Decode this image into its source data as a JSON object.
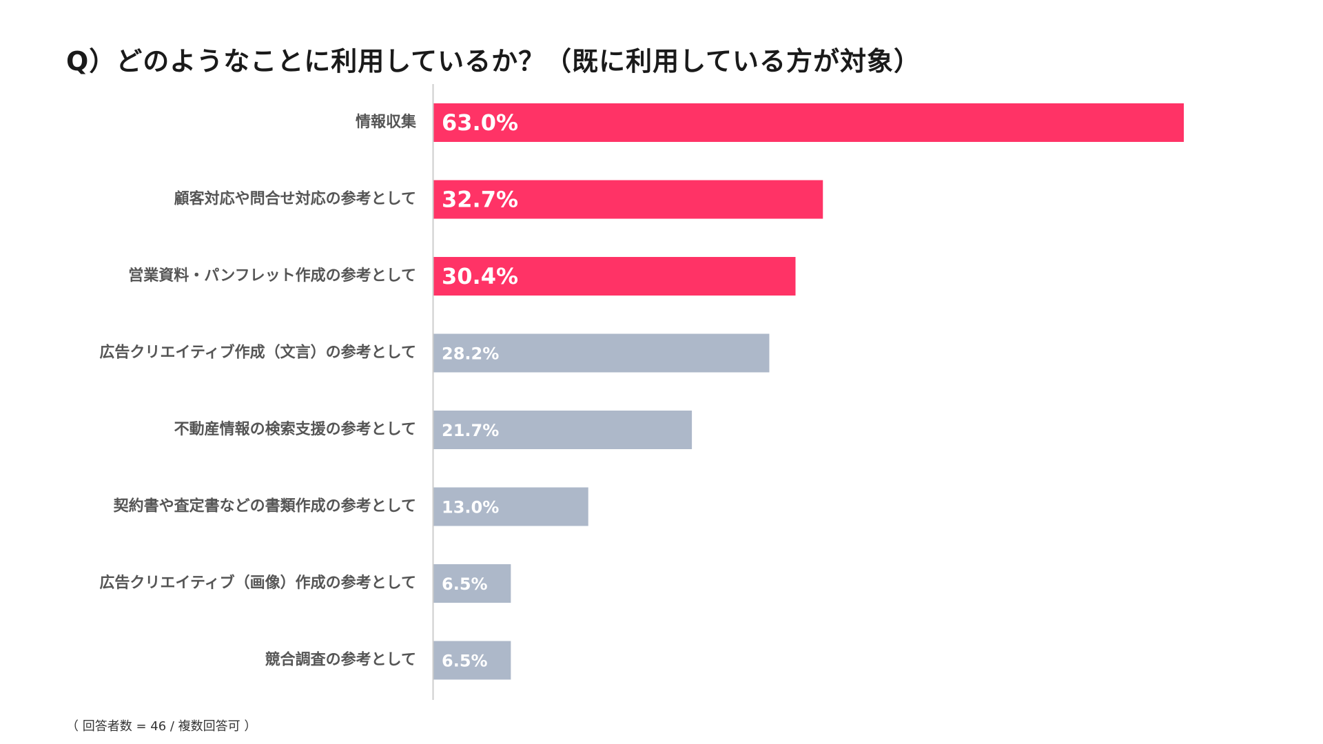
{
  "title": "Q）どのようなことに利用しているか？（既に利用している方が対象）",
  "footnote": "（ 回答者数 = 46 / 複数回答可 ）",
  "colors": {
    "highlight": "#ff3366",
    "default": "#adb8c9",
    "axis": "#cccccc"
  },
  "chart_data": {
    "type": "bar",
    "orientation": "horizontal",
    "categories": [
      "情報収集",
      "顧客対応や問合せ対応の参考として",
      "営業資料・パンフレット作成の参考として",
      "広告クリエイティブ作成（文言）の参考として",
      "不動産情報の検索支援の参考として",
      "契約書や査定書などの書類作成の参考として",
      "広告クリエイティブ（画像）作成の参考として",
      "競合調査の参考として"
    ],
    "values": [
      63.0,
      32.7,
      30.4,
      28.2,
      21.7,
      13.0,
      6.5,
      6.5
    ],
    "value_labels": [
      "63.0%",
      "32.7%",
      "30.4%",
      "28.2%",
      "21.7%",
      "13.0%",
      "6.5%",
      "6.5%"
    ],
    "highlighted": [
      true,
      true,
      true,
      false,
      false,
      false,
      false,
      false
    ],
    "unit": "%",
    "xlim": [
      0,
      70
    ],
    "grid": false,
    "legend": "none"
  }
}
